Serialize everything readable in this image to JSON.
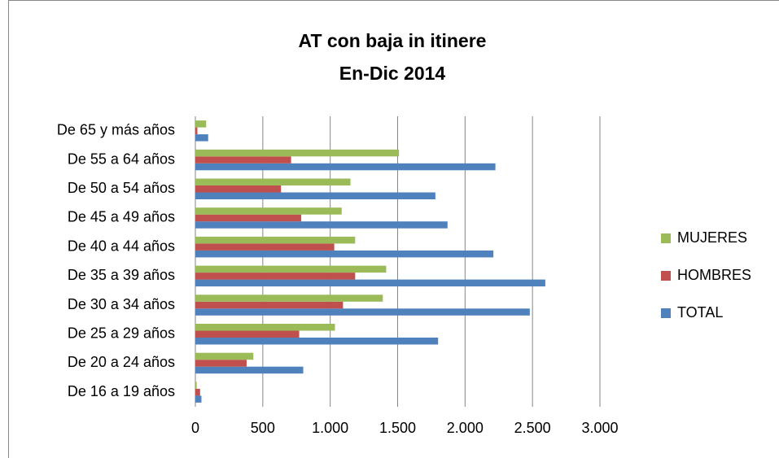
{
  "chart_data": {
    "type": "barh",
    "title": "AT con baja in itinere",
    "subtitle": "En-Dic 2014",
    "categories": [
      "De 16 a 19 años",
      "De 20 a 24 años",
      "De 25 a 29 años",
      "De 30 a 34 años",
      "De 35 a 39 años",
      "De 40 a 44 años",
      "De 45 a 49 años",
      "De 50 a 54 años",
      "De 55 a 64 años",
      "De 65 y más años"
    ],
    "series": [
      {
        "name": "TOTAL",
        "color": "#4f81bd",
        "values": [
          45,
          800,
          1800,
          2480,
          2595,
          2210,
          1870,
          1780,
          2225,
          95
        ]
      },
      {
        "name": "HOMBRES",
        "color": "#c0504d",
        "values": [
          35,
          380,
          770,
          1095,
          1185,
          1030,
          785,
          635,
          710,
          15
        ]
      },
      {
        "name": "MUJERES",
        "color": "#9bbb59",
        "values": [
          10,
          430,
          1035,
          1390,
          1415,
          1185,
          1085,
          1150,
          1510,
          80
        ]
      }
    ],
    "xlim": [
      0,
      3000
    ],
    "xticks": [
      0,
      500,
      {
        "value": 1000,
        "label": "1.000"
      },
      {
        "value": 1500,
        "label": "1.500"
      },
      {
        "value": 2000,
        "label": "2.000"
      },
      {
        "value": 2500,
        "label": "2.500"
      },
      {
        "value": 3000,
        "label": "3.000"
      }
    ],
    "grid": true,
    "legend": "right"
  }
}
